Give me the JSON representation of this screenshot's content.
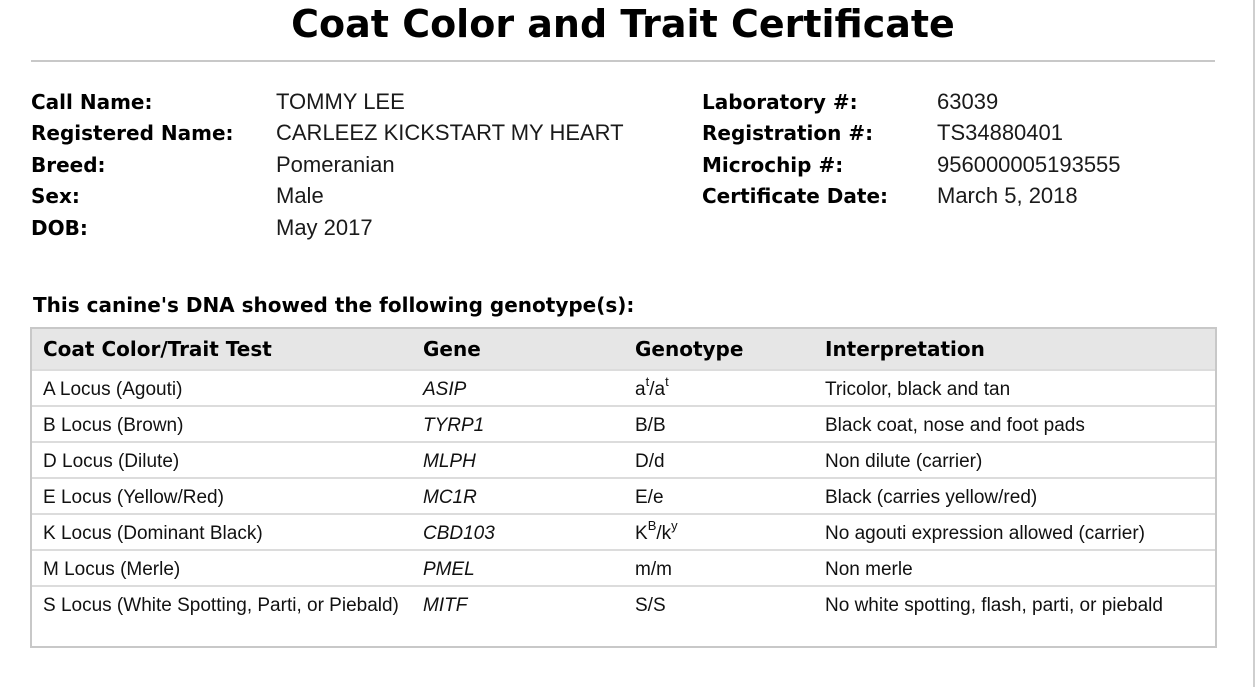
{
  "title": "Coat Color and Trait Certificate",
  "info_left": [
    {
      "label": "Call Name:",
      "value": "TOMMY LEE"
    },
    {
      "label": "Registered Name:",
      "value": "CARLEEZ KICKSTART MY HEART"
    },
    {
      "label": "Breed:",
      "value": "Pomeranian"
    },
    {
      "label": "Sex:",
      "value": "Male"
    },
    {
      "label": "DOB:",
      "value": "May 2017"
    }
  ],
  "info_right": [
    {
      "label": "Laboratory #:",
      "value": "63039"
    },
    {
      "label": "Registration #:",
      "value": "TS34880401"
    },
    {
      "label": "Microchip #:",
      "value": "956000005193555"
    },
    {
      "label": "Certificate Date:",
      "value": "March 5, 2018"
    }
  ],
  "intro": "This canine's DNA showed the following genotype(s):",
  "table": {
    "headers": [
      "Coat Color/Trait Test",
      "Gene",
      "Genotype",
      "Interpretation"
    ],
    "rows": [
      {
        "test": "A Locus (Agouti)",
        "gene": "ASIP",
        "genotype": {
          "a1": "a",
          "s1": "t",
          "sep": "/",
          "a2": "a",
          "s2": "t"
        },
        "interpretation": "Tricolor, black and tan"
      },
      {
        "test": "B Locus (Brown)",
        "gene": "TYRP1",
        "genotype": "B/B",
        "interpretation": "Black coat, nose and foot pads"
      },
      {
        "test": "D Locus (Dilute)",
        "gene": "MLPH",
        "genotype": "D/d",
        "interpretation": "Non dilute (carrier)"
      },
      {
        "test": "E Locus (Yellow/Red)",
        "gene": "MC1R",
        "genotype": "E/e",
        "interpretation": "Black (carries yellow/red)"
      },
      {
        "test": "K Locus (Dominant Black)",
        "gene": "CBD103",
        "genotype": {
          "a1": "K",
          "s1": "B",
          "sep": "/",
          "a2": "k",
          "s2": "y"
        },
        "interpretation": "No agouti expression allowed (carrier)"
      },
      {
        "test": "M Locus (Merle)",
        "gene": "PMEL",
        "genotype": "m/m",
        "interpretation": "Non merle"
      },
      {
        "test": "S Locus (White Spotting, Parti, or Piebald)",
        "gene": "MITF",
        "genotype": "S/S",
        "interpretation": "No white spotting, flash, parti, or piebald"
      }
    ]
  }
}
